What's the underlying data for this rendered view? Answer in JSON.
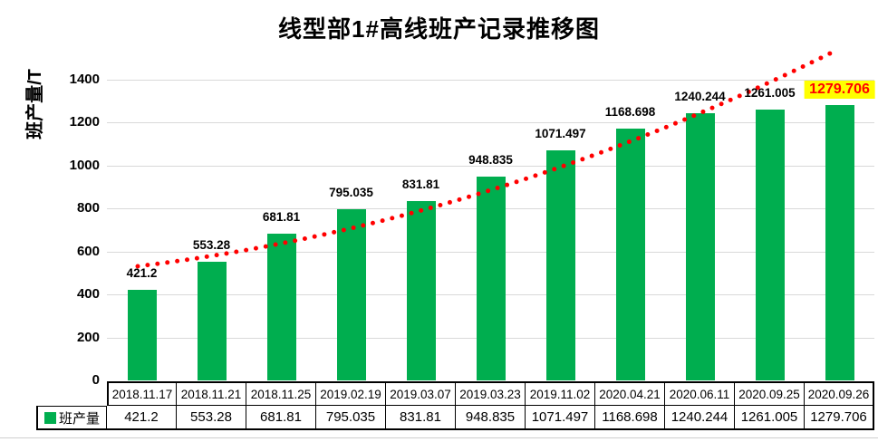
{
  "title": "线型部1#高线班产记录推移图",
  "colors": {
    "bar": "#00AE4F",
    "trendline": "#FF0000",
    "highlight_bg": "#FFFF00",
    "highlight_text": "#FF0000",
    "gridline": "#D9D9D9"
  },
  "y_axis": {
    "label": "班产量/T",
    "ticks": [
      "0",
      "200",
      "400",
      "600",
      "800",
      "1000",
      "1200",
      "1400"
    ]
  },
  "legend": {
    "series_label": "班产量"
  },
  "chart_data": {
    "type": "bar",
    "title": "线型部1#高线班产记录推移图",
    "xlabel": "",
    "ylabel": "班产量/T",
    "ylim": [
      0,
      1500
    ],
    "grid": true,
    "legend_position": "bottom-table",
    "categories": [
      "2018.11.17",
      "2018.11.21",
      "2018.11.25",
      "2019.02.19",
      "2019.03.07",
      "2019.03.23",
      "2019.11.02",
      "2020.04.21",
      "2020.06.11",
      "2020.09.25",
      "2020.09.26"
    ],
    "series": [
      {
        "name": "班产量",
        "values": [
          421.2,
          553.28,
          681.81,
          795.035,
          831.81,
          948.835,
          1071.497,
          1168.698,
          1240.244,
          1261.005,
          1279.706
        ]
      }
    ],
    "value_labels": [
      "421.2",
      "553.28",
      "681.81",
      "795.035",
      "831.81",
      "948.835",
      "1071.497",
      "1168.698",
      "1240.244",
      "1261.005",
      "1279.706"
    ],
    "highlighted_index": 10,
    "trendline": {
      "type": "fitted-curve",
      "style": "dotted",
      "color": "#FF0000"
    },
    "data_table_shown": true
  },
  "table": {
    "row_header": "班产量"
  }
}
